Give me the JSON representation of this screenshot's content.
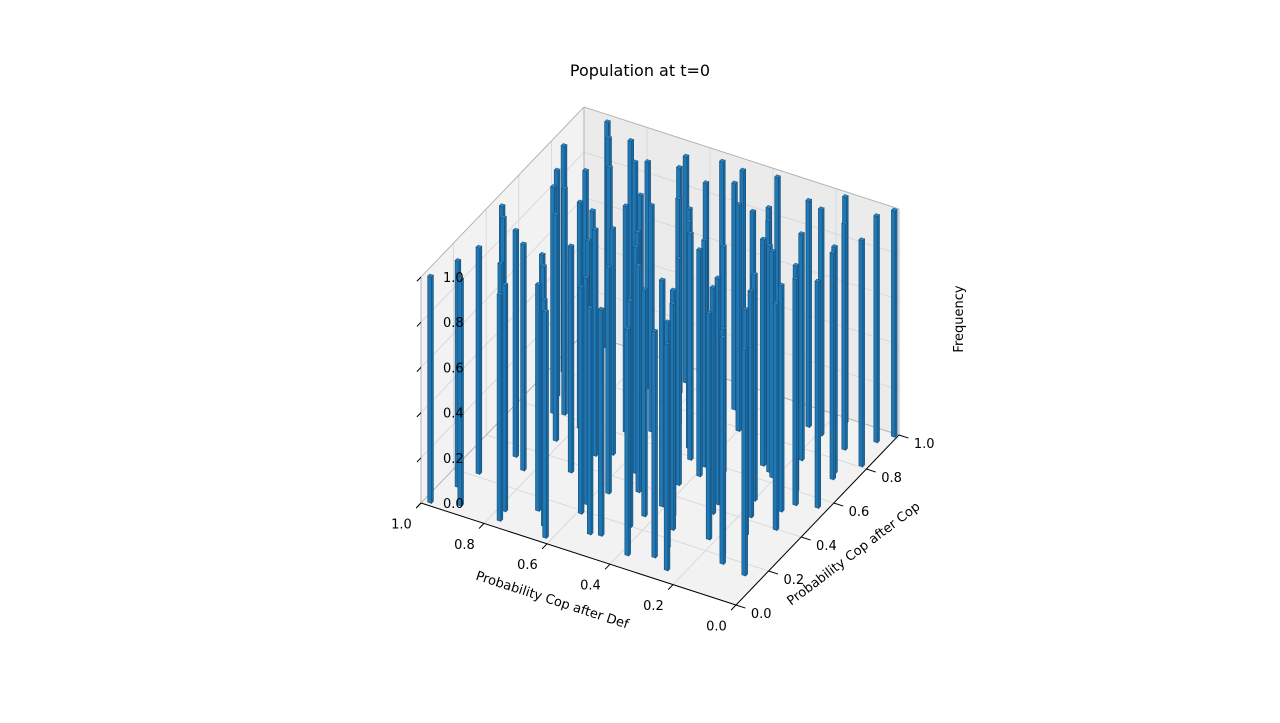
{
  "chart_data": {
    "type": "bar3d",
    "title": "Population at t=0",
    "xlabel": "Probability Cop after Def",
    "ylabel": "Probability Cop after Cop",
    "zlabel": "Frequency",
    "xlim": [
      0,
      1
    ],
    "ylim": [
      0,
      1
    ],
    "zlim": [
      0,
      1
    ],
    "x_ticks": [
      "0.0",
      "0.2",
      "0.4",
      "0.6",
      "0.8",
      "1.0"
    ],
    "y_ticks": [
      "0.0",
      "0.2",
      "0.4",
      "0.6",
      "0.8",
      "1.0"
    ],
    "z_ticks": [
      "0.0",
      "0.2",
      "0.4",
      "0.6",
      "0.8",
      "1.0"
    ],
    "bar_color": "#1f77b4",
    "bar_height": 1.0,
    "grid": true,
    "bars": [
      {
        "x": 0.98,
        "y": 0.02
      },
      {
        "x": 0.95,
        "y": 0.13
      },
      {
        "x": 0.93,
        "y": 0.22
      },
      {
        "x": 0.9,
        "y": 0.05
      },
      {
        "x": 0.88,
        "y": 0.35
      },
      {
        "x": 0.86,
        "y": 0.61
      },
      {
        "x": 0.84,
        "y": 0.18
      },
      {
        "x": 0.82,
        "y": 0.48
      },
      {
        "x": 0.8,
        "y": 0.77
      },
      {
        "x": 0.78,
        "y": 0.09
      },
      {
        "x": 0.76,
        "y": 0.28
      },
      {
        "x": 0.74,
        "y": 0.55
      },
      {
        "x": 0.72,
        "y": 0.85
      },
      {
        "x": 0.7,
        "y": 0.14
      },
      {
        "x": 0.68,
        "y": 0.41
      },
      {
        "x": 0.66,
        "y": 0.69
      },
      {
        "x": 0.64,
        "y": 0.93
      },
      {
        "x": 0.62,
        "y": 0.03
      },
      {
        "x": 0.6,
        "y": 0.24
      },
      {
        "x": 0.58,
        "y": 0.52
      },
      {
        "x": 0.56,
        "y": 0.73
      },
      {
        "x": 0.54,
        "y": 0.96
      },
      {
        "x": 0.52,
        "y": 0.11
      },
      {
        "x": 0.5,
        "y": 0.37
      },
      {
        "x": 0.48,
        "y": 0.64
      },
      {
        "x": 0.46,
        "y": 0.88
      },
      {
        "x": 0.44,
        "y": 0.2
      },
      {
        "x": 0.42,
        "y": 0.46
      },
      {
        "x": 0.4,
        "y": 0.79
      },
      {
        "x": 0.38,
        "y": 0.07
      },
      {
        "x": 0.36,
        "y": 0.31
      },
      {
        "x": 0.34,
        "y": 0.58
      },
      {
        "x": 0.32,
        "y": 0.82
      },
      {
        "x": 0.3,
        "y": 0.16
      },
      {
        "x": 0.28,
        "y": 0.43
      },
      {
        "x": 0.26,
        "y": 0.67
      },
      {
        "x": 0.24,
        "y": 0.91
      },
      {
        "x": 0.22,
        "y": 0.26
      },
      {
        "x": 0.2,
        "y": 0.5
      },
      {
        "x": 0.18,
        "y": 0.75
      },
      {
        "x": 0.16,
        "y": 0.98
      },
      {
        "x": 0.14,
        "y": 0.33
      },
      {
        "x": 0.12,
        "y": 0.6
      },
      {
        "x": 0.1,
        "y": 0.86
      },
      {
        "x": 0.08,
        "y": 0.4
      },
      {
        "x": 0.06,
        "y": 0.71
      },
      {
        "x": 0.04,
        "y": 0.94
      },
      {
        "x": 0.03,
        "y": 0.56
      },
      {
        "x": 0.02,
        "y": 0.81
      },
      {
        "x": 0.01,
        "y": 0.99
      },
      {
        "x": 0.97,
        "y": 0.44
      },
      {
        "x": 0.92,
        "y": 0.68
      },
      {
        "x": 0.87,
        "y": 0.9
      },
      {
        "x": 0.83,
        "y": 0.3
      },
      {
        "x": 0.79,
        "y": 0.57
      },
      {
        "x": 0.75,
        "y": 0.83
      },
      {
        "x": 0.71,
        "y": 0.36
      },
      {
        "x": 0.67,
        "y": 0.62
      },
      {
        "x": 0.63,
        "y": 0.87
      },
      {
        "x": 0.59,
        "y": 0.19
      },
      {
        "x": 0.55,
        "y": 0.45
      },
      {
        "x": 0.51,
        "y": 0.7
      },
      {
        "x": 0.47,
        "y": 0.95
      },
      {
        "x": 0.43,
        "y": 0.27
      },
      {
        "x": 0.39,
        "y": 0.53
      },
      {
        "x": 0.35,
        "y": 0.78
      },
      {
        "x": 0.31,
        "y": 0.1
      },
      {
        "x": 0.27,
        "y": 0.38
      },
      {
        "x": 0.23,
        "y": 0.65
      },
      {
        "x": 0.19,
        "y": 0.89
      },
      {
        "x": 0.15,
        "y": 0.21
      },
      {
        "x": 0.11,
        "y": 0.49
      },
      {
        "x": 0.07,
        "y": 0.74
      },
      {
        "x": 0.05,
        "y": 0.15
      },
      {
        "x": 0.96,
        "y": 0.8
      },
      {
        "x": 0.91,
        "y": 0.97
      },
      {
        "x": 0.85,
        "y": 0.72
      },
      {
        "x": 0.81,
        "y": 0.92
      },
      {
        "x": 0.77,
        "y": 0.04
      },
      {
        "x": 0.73,
        "y": 0.23
      },
      {
        "x": 0.69,
        "y": 0.47
      },
      {
        "x": 0.65,
        "y": 0.08
      },
      {
        "x": 0.61,
        "y": 0.66
      },
      {
        "x": 0.57,
        "y": 0.32
      },
      {
        "x": 0.53,
        "y": 0.84
      },
      {
        "x": 0.49,
        "y": 0.12
      },
      {
        "x": 0.45,
        "y": 0.59
      },
      {
        "x": 0.41,
        "y": 0.34
      },
      {
        "x": 0.37,
        "y": 0.97
      },
      {
        "x": 0.33,
        "y": 0.25
      },
      {
        "x": 0.29,
        "y": 0.76
      },
      {
        "x": 0.25,
        "y": 0.06
      },
      {
        "x": 0.21,
        "y": 0.63
      },
      {
        "x": 0.17,
        "y": 0.42
      },
      {
        "x": 0.13,
        "y": 0.17
      },
      {
        "x": 0.09,
        "y": 0.54
      },
      {
        "x": 0.94,
        "y": 0.39
      },
      {
        "x": 0.89,
        "y": 0.6
      },
      {
        "x": 0.65,
        "y": 0.5
      },
      {
        "x": 0.4,
        "y": 0.58
      }
    ]
  }
}
